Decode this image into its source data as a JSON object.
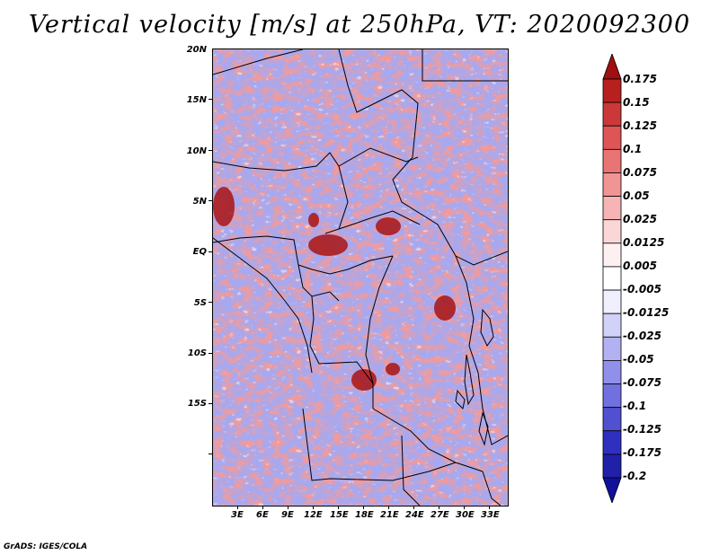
{
  "title": "Vertical velocity [m/s] at 250hPa, VT: 2020092300",
  "credit": "GrADS: IGES/COLA",
  "lat_labels": [
    "20N",
    "15N",
    "10N",
    "5N",
    "EQ",
    "5S",
    "10S",
    "15S"
  ],
  "lon_labels": [
    "3E",
    "6E",
    "9E",
    "12E",
    "15E",
    "18E",
    "21E",
    "24E",
    "27E",
    "30E",
    "33E"
  ],
  "colorbar": {
    "levels": [
      "0.175",
      "0.15",
      "0.125",
      "0.1",
      "0.075",
      "0.05",
      "0.025",
      "0.0125",
      "0.005",
      "-0.005",
      "-0.0125",
      "-0.025",
      "-0.05",
      "-0.075",
      "-0.1",
      "-0.125",
      "-0.175",
      "-0.2"
    ],
    "colors": [
      "#a01010",
      "#b82020",
      "#cc3838",
      "#dd5555",
      "#e87474",
      "#f09494",
      "#f6b4b4",
      "#fad6d6",
      "#fdf0f0",
      "#ffffff",
      "#efeffd",
      "#d2d2f8",
      "#b2b2f2",
      "#9090ea",
      "#7070e0",
      "#5050d0",
      "#3030c0",
      "#2020a8",
      "#10109a"
    ]
  },
  "field_colors": {
    "negative": "#8c8ce8",
    "positive": "#f08a8a",
    "strong_positive": "#a01010"
  }
}
